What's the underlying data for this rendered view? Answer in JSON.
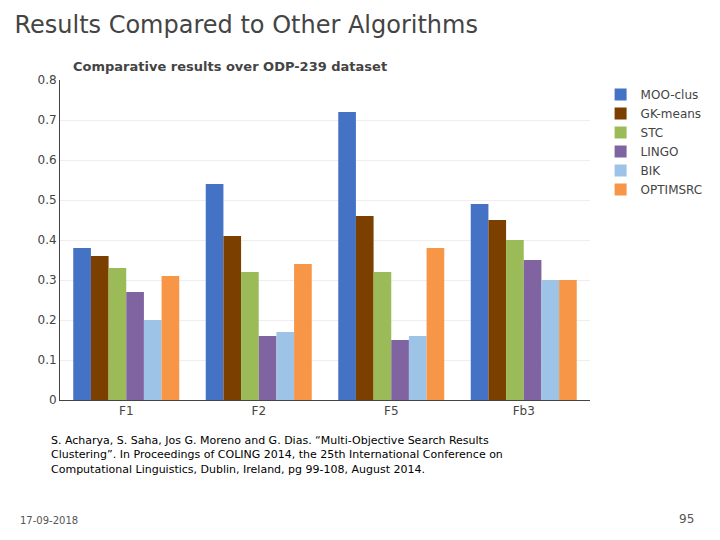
{
  "chart_data": {
    "type": "bar",
    "title": "Results Compared to Other Algorithms",
    "subtitle": "Comparative results over ODP-239 dataset",
    "categories": [
      "F1",
      "F2",
      "F5",
      "Fb3"
    ],
    "series": [
      {
        "name": "MOO-clus",
        "color": "#4472C4",
        "values": [
          0.38,
          0.54,
          0.72,
          0.49
        ]
      },
      {
        "name": "GK-means",
        "color": "#7B3F00",
        "values": [
          0.36,
          0.41,
          0.46,
          0.45
        ]
      },
      {
        "name": "STC",
        "color": "#9BBB59",
        "values": [
          0.33,
          0.32,
          0.32,
          0.4
        ]
      },
      {
        "name": "LINGO",
        "color": "#8064A2",
        "values": [
          0.27,
          0.16,
          0.15,
          0.35
        ]
      },
      {
        "name": "BIK",
        "color": "#9DC3E6",
        "values": [
          0.2,
          0.17,
          0.16,
          0.3
        ]
      },
      {
        "name": "OPTIMSRC",
        "color": "#F79646",
        "values": [
          0.31,
          0.34,
          0.38,
          0.3
        ]
      }
    ],
    "ylim": [
      0,
      0.8
    ],
    "yticks": [
      0,
      0.1,
      0.2,
      0.3,
      0.4,
      0.5,
      0.6,
      0.7,
      0.8
    ],
    "grid": true,
    "legend": "upper right",
    "annotations": [
      "S. Acharya, S. Saha, Jos G. Moreno and G. Dias. “Multi-Objective Search Results\nClustering”. In Proceedings of COLING 2014, the 25th International Conference on\nComputational Linguistics, Dublin, Ireland, pg 99-108, August 2014.",
      "17-09-2018",
      "95"
    ]
  }
}
